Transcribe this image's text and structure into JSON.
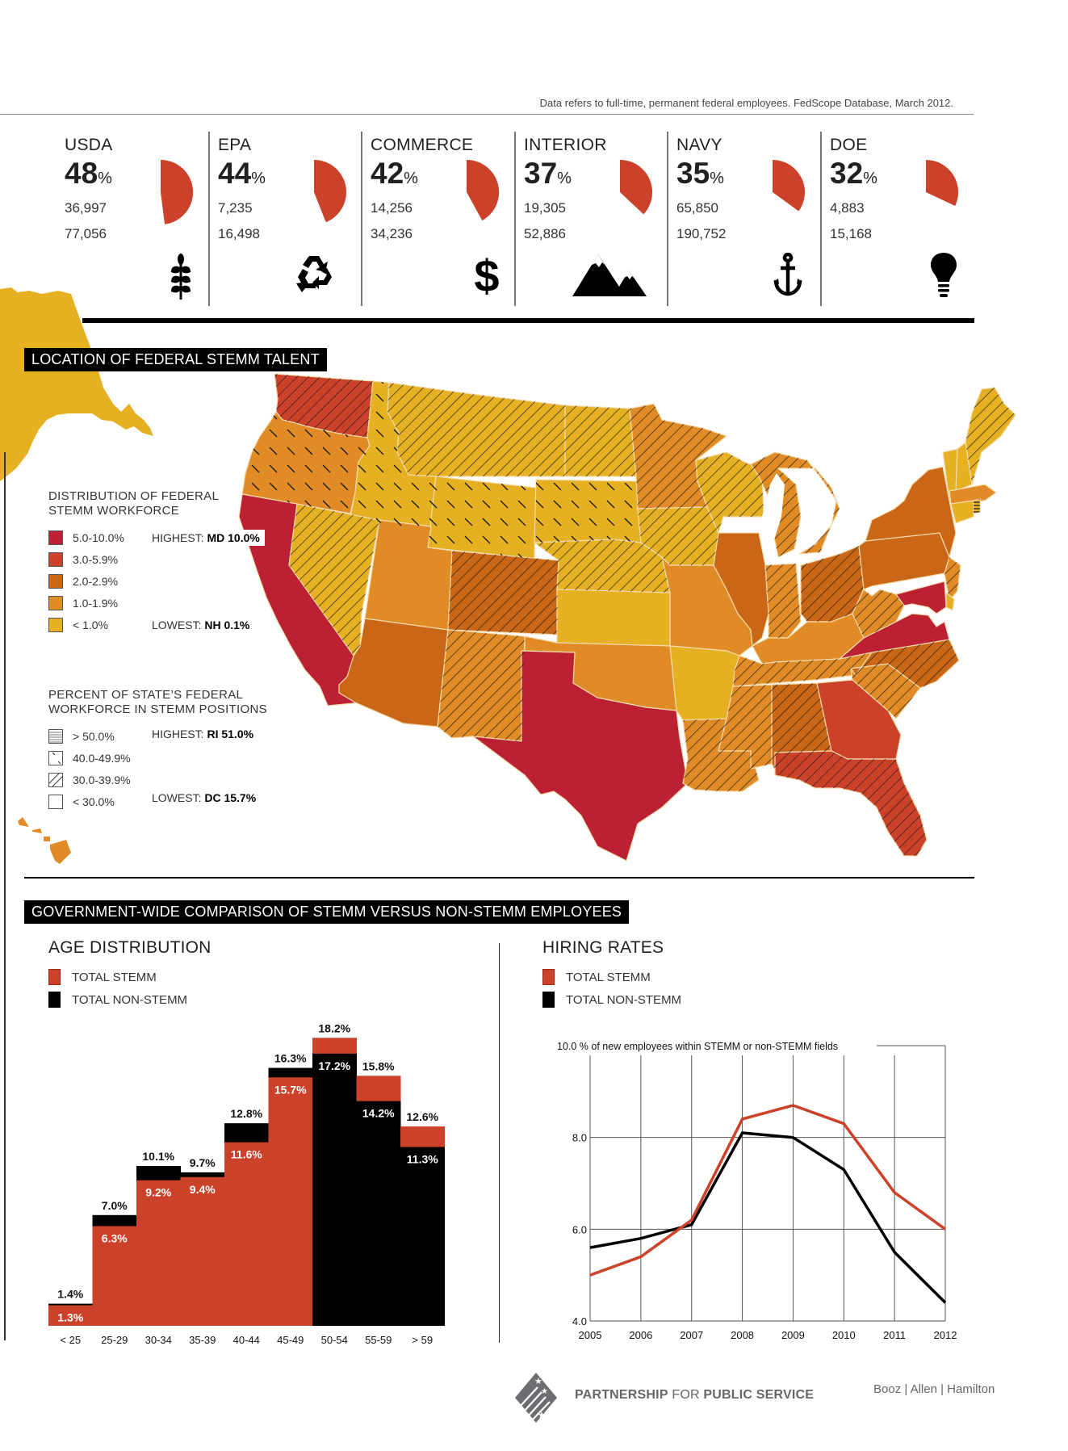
{
  "header": {
    "note": "Data refers to full-time, permanent federal employees. FedScope Database, March 2012."
  },
  "agencies": [
    {
      "name": "USDA",
      "percent": "48",
      "percent_sign": "%",
      "stemm": "36,997",
      "total": "77,056",
      "share": 0.48,
      "icon": "wheat-icon"
    },
    {
      "name": "EPA",
      "percent": "44",
      "percent_sign": "%",
      "stemm": "7,235",
      "total": "16,498",
      "share": 0.44,
      "icon": "recycle-icon"
    },
    {
      "name": "COMMERCE",
      "percent": "42",
      "percent_sign": "%",
      "stemm": "14,256",
      "total": "34,236",
      "share": 0.42,
      "icon": "dollar-icon"
    },
    {
      "name": "INTERIOR",
      "percent": "37",
      "percent_sign": "%",
      "stemm": "19,305",
      "total": "52,886",
      "share": 0.37,
      "icon": "mountain-icon"
    },
    {
      "name": "NAVY",
      "percent": "35",
      "percent_sign": "%",
      "stemm": "65,850",
      "total": "190,752",
      "share": 0.35,
      "icon": "anchor-icon"
    },
    {
      "name": "DOE",
      "percent": "32",
      "percent_sign": "%",
      "stemm": "4,883",
      "total": "15,168",
      "share": 0.32,
      "icon": "lightbulb-icon"
    }
  ],
  "map": {
    "title": "LOCATION OF FEDERAL STEMM TALENT",
    "distribution_legend": {
      "title_line1": "DISTRIBUTION OF FEDERAL",
      "title_line2": "STEMM WORKFORCE",
      "items": [
        {
          "label": "5.0-10.0%",
          "color": "#bb2033"
        },
        {
          "label": "3.0-5.9%",
          "color": "#cc412a"
        },
        {
          "label": "2.0-2.9%",
          "color": "#c96716"
        },
        {
          "label": "1.0-1.9%",
          "color": "#e08b25"
        },
        {
          "label": "< 1.0%",
          "color": "#e5b021"
        }
      ],
      "highest_label": "HIGHEST:",
      "highest_value": "MD 10.0%",
      "lowest_label": "LOWEST:",
      "lowest_value": "NH 0.1%"
    },
    "percent_legend": {
      "title_line1": "PERCENT OF STATE’S FEDERAL",
      "title_line2": "WORKFORCE IN STEMM POSITIONS",
      "items": [
        {
          "label": "> 50.0%",
          "pattern": "horizontal"
        },
        {
          "label": "40.0-49.9%",
          "pattern": "dash"
        },
        {
          "label": "30.0-39.9%",
          "pattern": "diagonal"
        },
        {
          "label": "< 30.0%",
          "pattern": "none"
        }
      ],
      "highest_label": "HIGHEST:",
      "highest_value": "RI 51.0%",
      "lowest_label": "LOWEST:",
      "lowest_value": "DC 15.7%"
    }
  },
  "comparison": {
    "title": "GOVERNMENT-WIDE COMPARISON OF STEMM VERSUS NON-STEMM EMPLOYEES"
  },
  "chart_data": [
    {
      "type": "bar",
      "title": "AGE DISTRIBUTION",
      "legend": [
        "TOTAL STEMM",
        "TOTAL NON-STEMM"
      ],
      "colors": {
        "stemm": "#cc412a",
        "non_stemm": "#000000"
      },
      "categories": [
        "< 25",
        "25-29",
        "30-34",
        "35-39",
        "40-44",
        "45-49",
        "50-54",
        "55-59",
        "> 59"
      ],
      "series": [
        {
          "name": "TOTAL STEMM",
          "values": [
            1.3,
            6.3,
            9.2,
            9.4,
            11.6,
            15.7,
            18.2,
            15.8,
            12.6
          ],
          "labels": [
            "1.3%",
            "6.3%",
            "9.2%",
            "9.4%",
            "11.6%",
            "15.7%",
            "18.2%",
            "15.8%",
            "12.6%"
          ]
        },
        {
          "name": "TOTAL NON-STEMM",
          "values": [
            1.4,
            7.0,
            10.1,
            9.7,
            12.8,
            16.3,
            17.2,
            14.2,
            11.3
          ],
          "labels": [
            "1.4%",
            "7.0%",
            "10.1%",
            "9.7%",
            "12.8%",
            "16.3%",
            "17.2%",
            "14.2%",
            "11.3%"
          ]
        }
      ],
      "ylim": [
        0,
        18.2
      ]
    },
    {
      "type": "line",
      "title": "HIRING RATES",
      "legend": [
        "TOTAL STEMM",
        "TOTAL NON-STEMM"
      ],
      "colors": {
        "stemm": "#cc412a",
        "non_stemm": "#000000"
      },
      "ylabel": "% of new employees within STEMM or non-STEMM fields",
      "x": [
        "2005",
        "2006",
        "2007",
        "2008",
        "2009",
        "2010",
        "2011",
        "2012"
      ],
      "series": [
        {
          "name": "TOTAL STEMM",
          "values": [
            5.0,
            5.4,
            6.2,
            8.4,
            8.7,
            8.3,
            6.8,
            6.0
          ]
        },
        {
          "name": "TOTAL NON-STEMM",
          "values": [
            5.6,
            5.8,
            6.1,
            8.1,
            8.0,
            7.3,
            5.5,
            4.4
          ]
        }
      ],
      "yticks": [
        "4.0",
        "6.0",
        "8.0",
        "10.0"
      ],
      "ylim": [
        4.0,
        10.0
      ],
      "grid": true
    }
  ],
  "footer": {
    "org_bold1": "PARTNERSHIP",
    "org_light": " FOR ",
    "org_bold2": "PUBLIC SERVICE",
    "sponsor": "Booz | Allen | Hamilton"
  }
}
